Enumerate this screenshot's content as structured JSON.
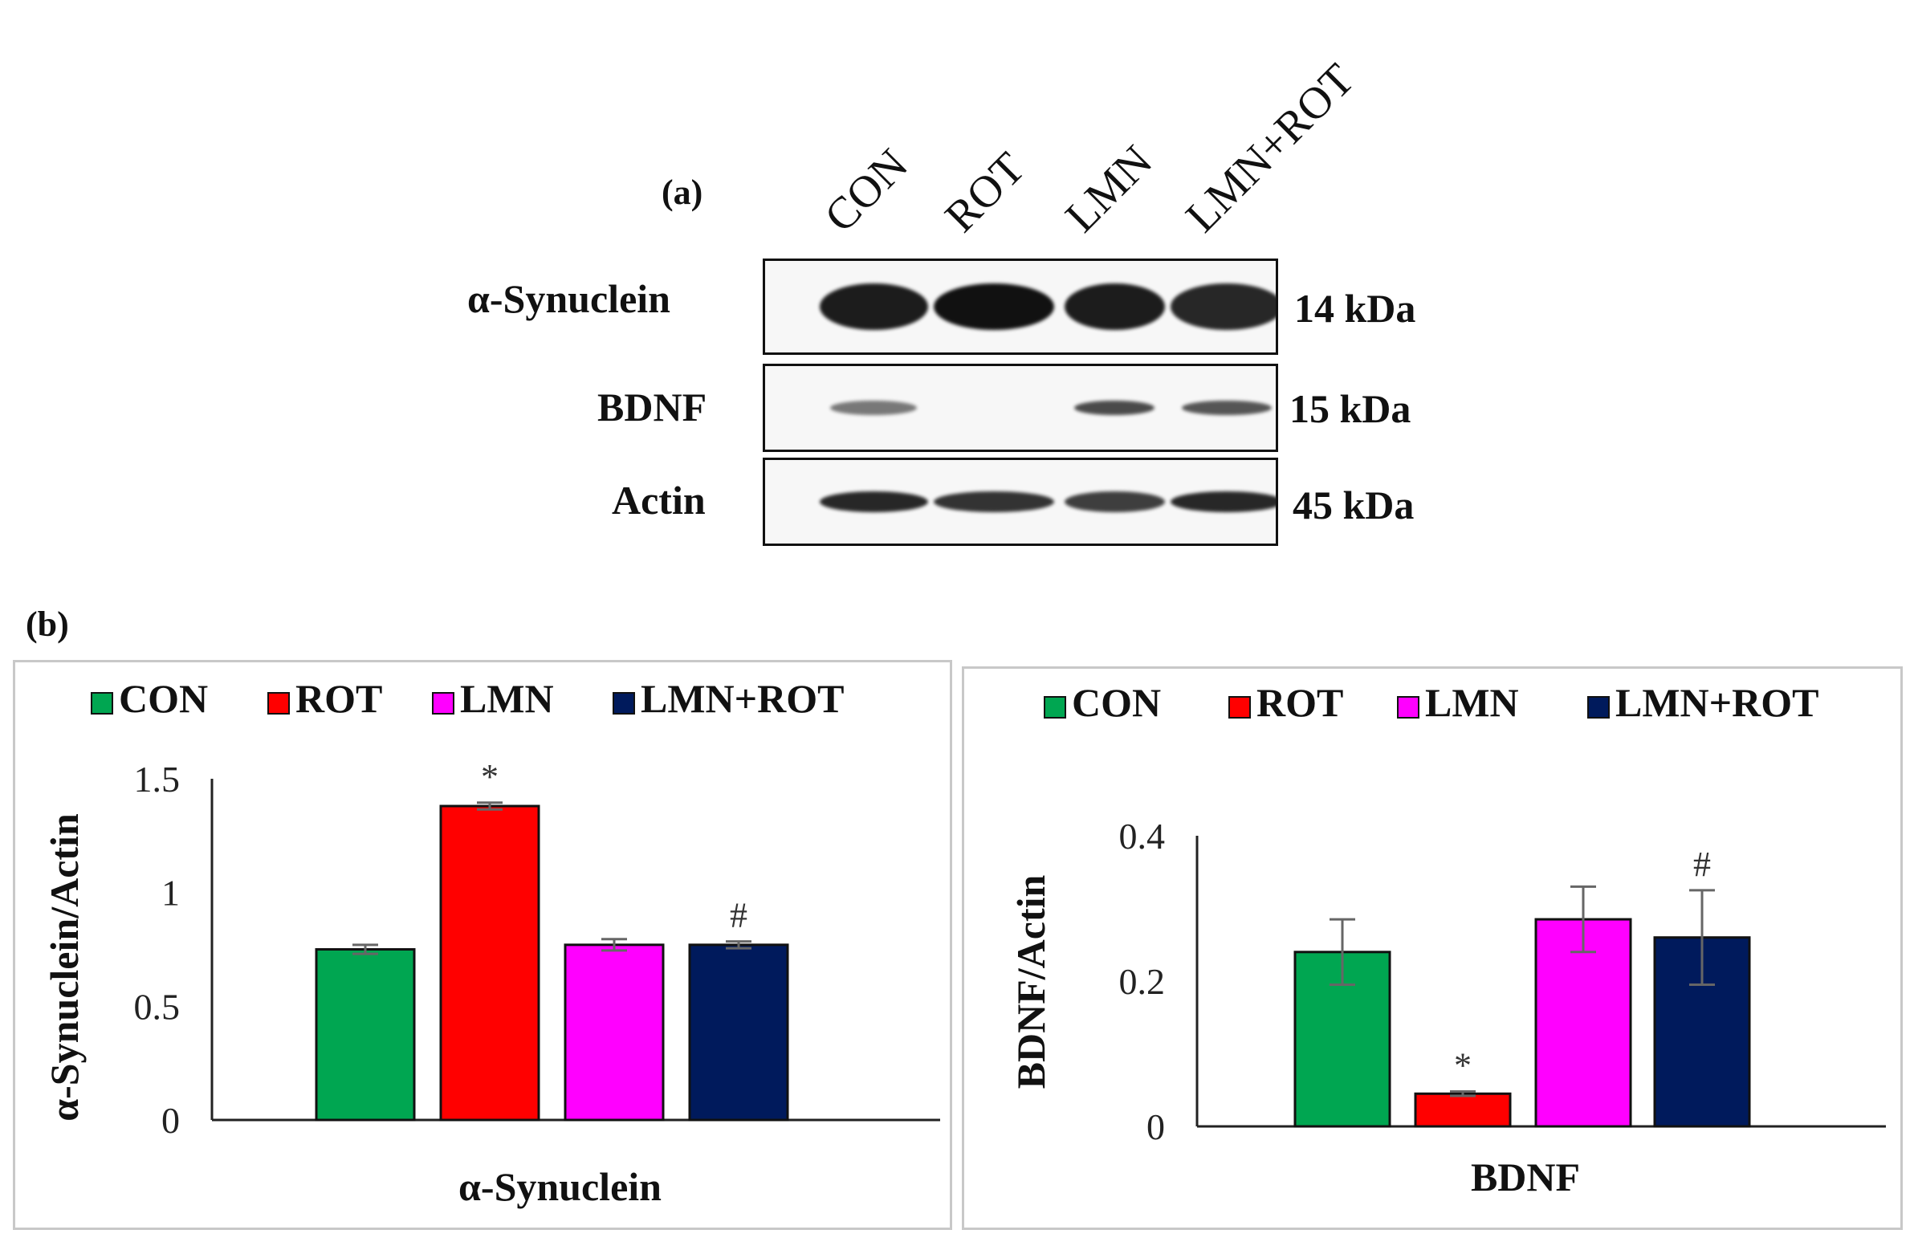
{
  "panel_a": {
    "label": "(a)",
    "lanes": [
      "CON",
      "ROT",
      "LMN",
      "LMN+ROT"
    ],
    "blots": [
      {
        "protein": "α-Synuclein",
        "kda": "14 kDa",
        "intensity": [
          0.95,
          1.0,
          0.95,
          0.9
        ]
      },
      {
        "protein": "BDNF",
        "kda": "15 kDa",
        "intensity": [
          0.55,
          0.0,
          0.75,
          0.7
        ]
      },
      {
        "protein": "Actin",
        "kda": "45 kDa",
        "intensity": [
          0.9,
          0.85,
          0.8,
          0.9
        ]
      }
    ]
  },
  "panel_b": {
    "label": "(b)"
  },
  "colors": {
    "CON": "#00a651",
    "ROT": "#ff0000",
    "LMN": "#ff00ff",
    "LMN+ROT": "#001a5c"
  },
  "chart_data": [
    {
      "type": "bar",
      "categories": [
        "α-Synuclein"
      ],
      "legend": [
        "CON",
        "ROT",
        "LMN",
        "LMN+ROT"
      ],
      "series": [
        {
          "name": "CON",
          "values": [
            0.75
          ],
          "error": [
            0.02
          ]
        },
        {
          "name": "ROT",
          "values": [
            1.38
          ],
          "error": [
            0.015
          ]
        },
        {
          "name": "LMN",
          "values": [
            0.77
          ],
          "error": [
            0.025
          ]
        },
        {
          "name": "LMN+ROT",
          "values": [
            0.77
          ],
          "error": [
            0.015
          ]
        }
      ],
      "annotations": [
        "",
        "*",
        "",
        "#"
      ],
      "ylabel": "α-Synuclein/Actin",
      "xlabel": "α-Synuclein",
      "yticks": [
        "0",
        "0.5",
        "1",
        "1.5"
      ],
      "ylim": [
        0,
        1.5
      ]
    },
    {
      "type": "bar",
      "categories": [
        "BDNF"
      ],
      "legend": [
        "CON",
        "ROT",
        "LMN",
        "LMN+ROT"
      ],
      "series": [
        {
          "name": "CON",
          "values": [
            0.24
          ],
          "error": [
            0.045
          ]
        },
        {
          "name": "ROT",
          "values": [
            0.045
          ],
          "error": [
            0.003
          ]
        },
        {
          "name": "LMN",
          "values": [
            0.285
          ],
          "error": [
            0.045
          ]
        },
        {
          "name": "LMN+ROT",
          "values": [
            0.26
          ],
          "error": [
            0.065
          ]
        }
      ],
      "annotations": [
        "",
        "*",
        "",
        "#"
      ],
      "ylabel": "BDNF/Actin",
      "xlabel": "BDNF",
      "yticks": [
        "0",
        "0.2",
        "0.4"
      ],
      "ylim": [
        0,
        0.4
      ]
    }
  ]
}
